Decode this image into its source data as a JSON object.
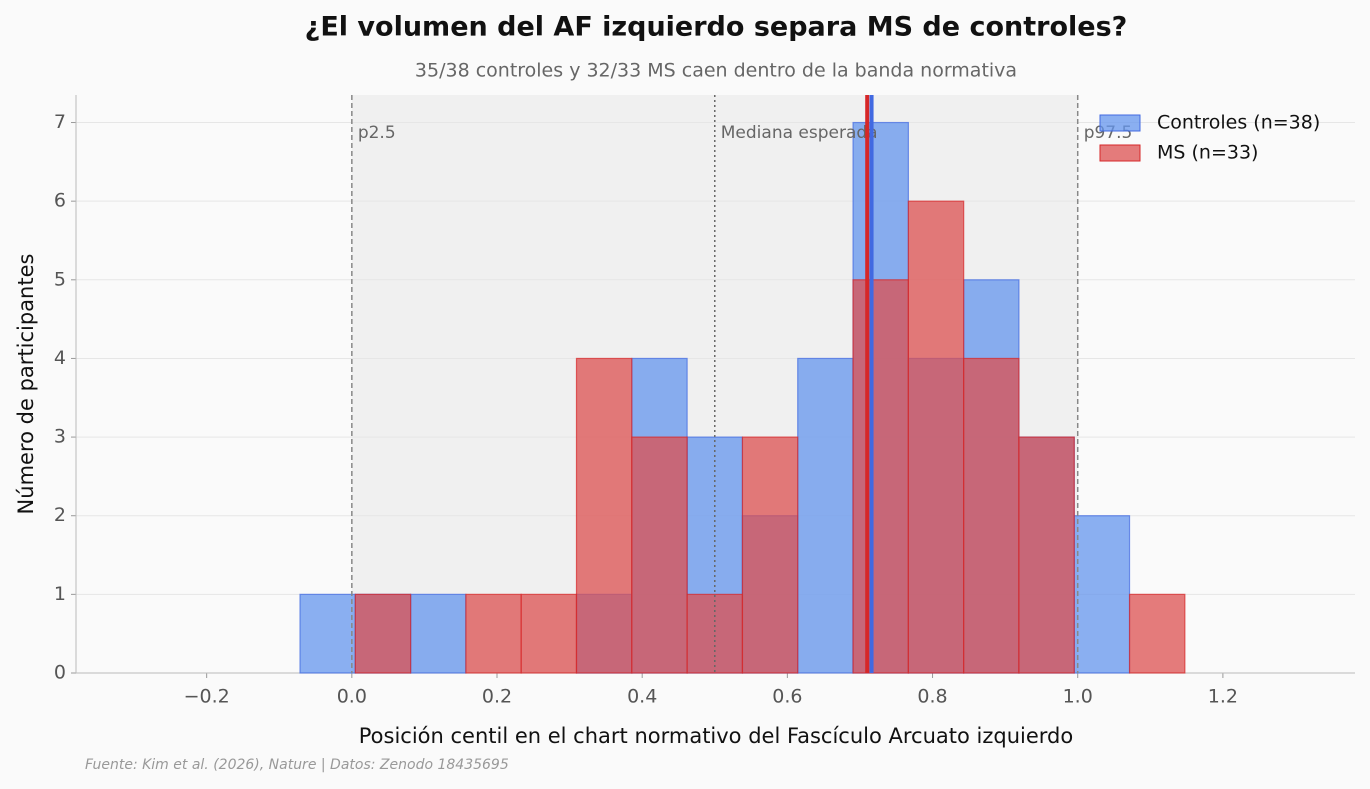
{
  "chart_data": {
    "type": "histogram",
    "title": "¿El volumen del AF izquierdo separa MS de controles?",
    "subtitle": "35/38 controles y 32/33 MS caen dentro de la banda normativa",
    "x_label": "Posición centil en el chart normativo del Fascículo Arcuato izquierdo",
    "y_label": "Número de participantes",
    "source": "Fuente: Kim et al. (2026), Nature | Datos: Zenodo 18435695",
    "bins": [
      -0.3,
      -0.2238,
      -0.1476,
      -0.0714,
      0.0048,
      0.081,
      0.1571,
      0.2333,
      0.3095,
      0.3857,
      0.4619,
      0.5381,
      0.6143,
      0.6905,
      0.7667,
      0.8429,
      0.919,
      0.9952,
      1.0714,
      1.1476,
      1.2238,
      1.3
    ],
    "series": [
      {
        "name": "Controles (n=38)",
        "color": "#6495ed",
        "edge_color": "#4169e1",
        "median": 0.716,
        "values": [
          0,
          0,
          0,
          1,
          1,
          1,
          0,
          0,
          1,
          4,
          3,
          2,
          4,
          7,
          4,
          5,
          3,
          2,
          0,
          0,
          0
        ]
      },
      {
        "name": "MS (n=33)",
        "color": "#dc5050",
        "edge_color": "#d62728",
        "median": 0.71,
        "values": [
          0,
          0,
          0,
          0,
          1,
          0,
          1,
          1,
          4,
          3,
          1,
          3,
          0,
          5,
          6,
          4,
          3,
          0,
          1,
          0,
          0
        ]
      }
    ],
    "reference_lines": [
      {
        "value": 0,
        "label": "p2.5",
        "style": "dashed"
      },
      {
        "value": 0.5,
        "label": "Mediana esperada",
        "style": "dotted"
      },
      {
        "value": 1,
        "label": "p97.5",
        "style": "dashed"
      }
    ],
    "band": [
      0,
      1
    ],
    "xlim": [
      -0.38,
      1.382
    ],
    "ylim": [
      0,
      7.35
    ],
    "xticks": [
      {
        "value": -0.2,
        "label": "−0.2"
      },
      {
        "value": 0,
        "label": "0.0"
      },
      0.2,
      0.4,
      0.6,
      0.8,
      {
        "value": 1,
        "label": "1.0"
      },
      1.2
    ],
    "yticks": [
      0,
      1,
      2,
      3,
      4,
      5,
      6,
      7
    ],
    "grid": true,
    "legend": "upper right"
  }
}
